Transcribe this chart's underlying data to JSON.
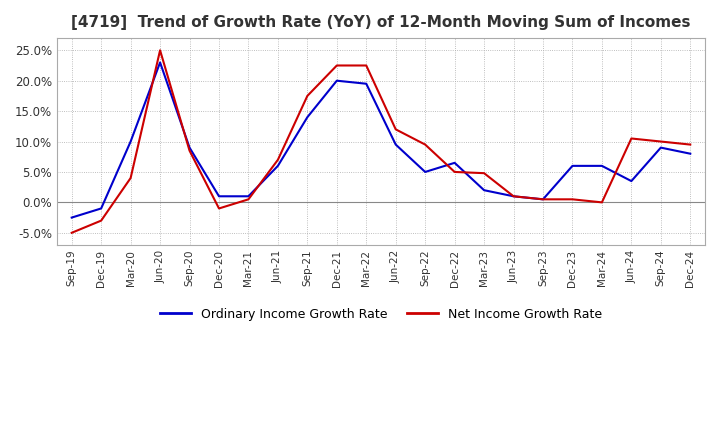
{
  "title": "[4719]  Trend of Growth Rate (YoY) of 12-Month Moving Sum of Incomes",
  "title_fontsize": 11,
  "ylim": [
    -0.07,
    0.27
  ],
  "yticks": [
    -0.05,
    0.0,
    0.05,
    0.1,
    0.15,
    0.2,
    0.25
  ],
  "background_color": "#ffffff",
  "grid_color": "#aaaaaa",
  "ordinary_color": "#0000cc",
  "net_color": "#cc0000",
  "legend_labels": [
    "Ordinary Income Growth Rate",
    "Net Income Growth Rate"
  ],
  "x_labels": [
    "Sep-19",
    "Dec-19",
    "Mar-20",
    "Jun-20",
    "Sep-20",
    "Dec-20",
    "Mar-21",
    "Jun-21",
    "Sep-21",
    "Dec-21",
    "Mar-22",
    "Jun-22",
    "Sep-22",
    "Dec-22",
    "Mar-23",
    "Jun-23",
    "Sep-23",
    "Dec-23",
    "Mar-24",
    "Jun-24",
    "Sep-24",
    "Dec-24"
  ],
  "ordinary_income_growth": [
    -0.025,
    -0.01,
    0.1,
    0.23,
    0.09,
    0.01,
    0.01,
    0.06,
    0.14,
    0.2,
    0.195,
    0.095,
    0.05,
    0.065,
    0.02,
    0.01,
    0.005,
    0.06,
    0.06,
    0.035,
    0.09,
    0.08
  ],
  "net_income_growth": [
    -0.05,
    -0.03,
    0.04,
    0.25,
    0.085,
    -0.01,
    0.005,
    0.07,
    0.175,
    0.225,
    0.225,
    0.12,
    0.095,
    0.05,
    0.048,
    0.01,
    0.005,
    0.005,
    0.0,
    0.105,
    0.1,
    0.095
  ]
}
